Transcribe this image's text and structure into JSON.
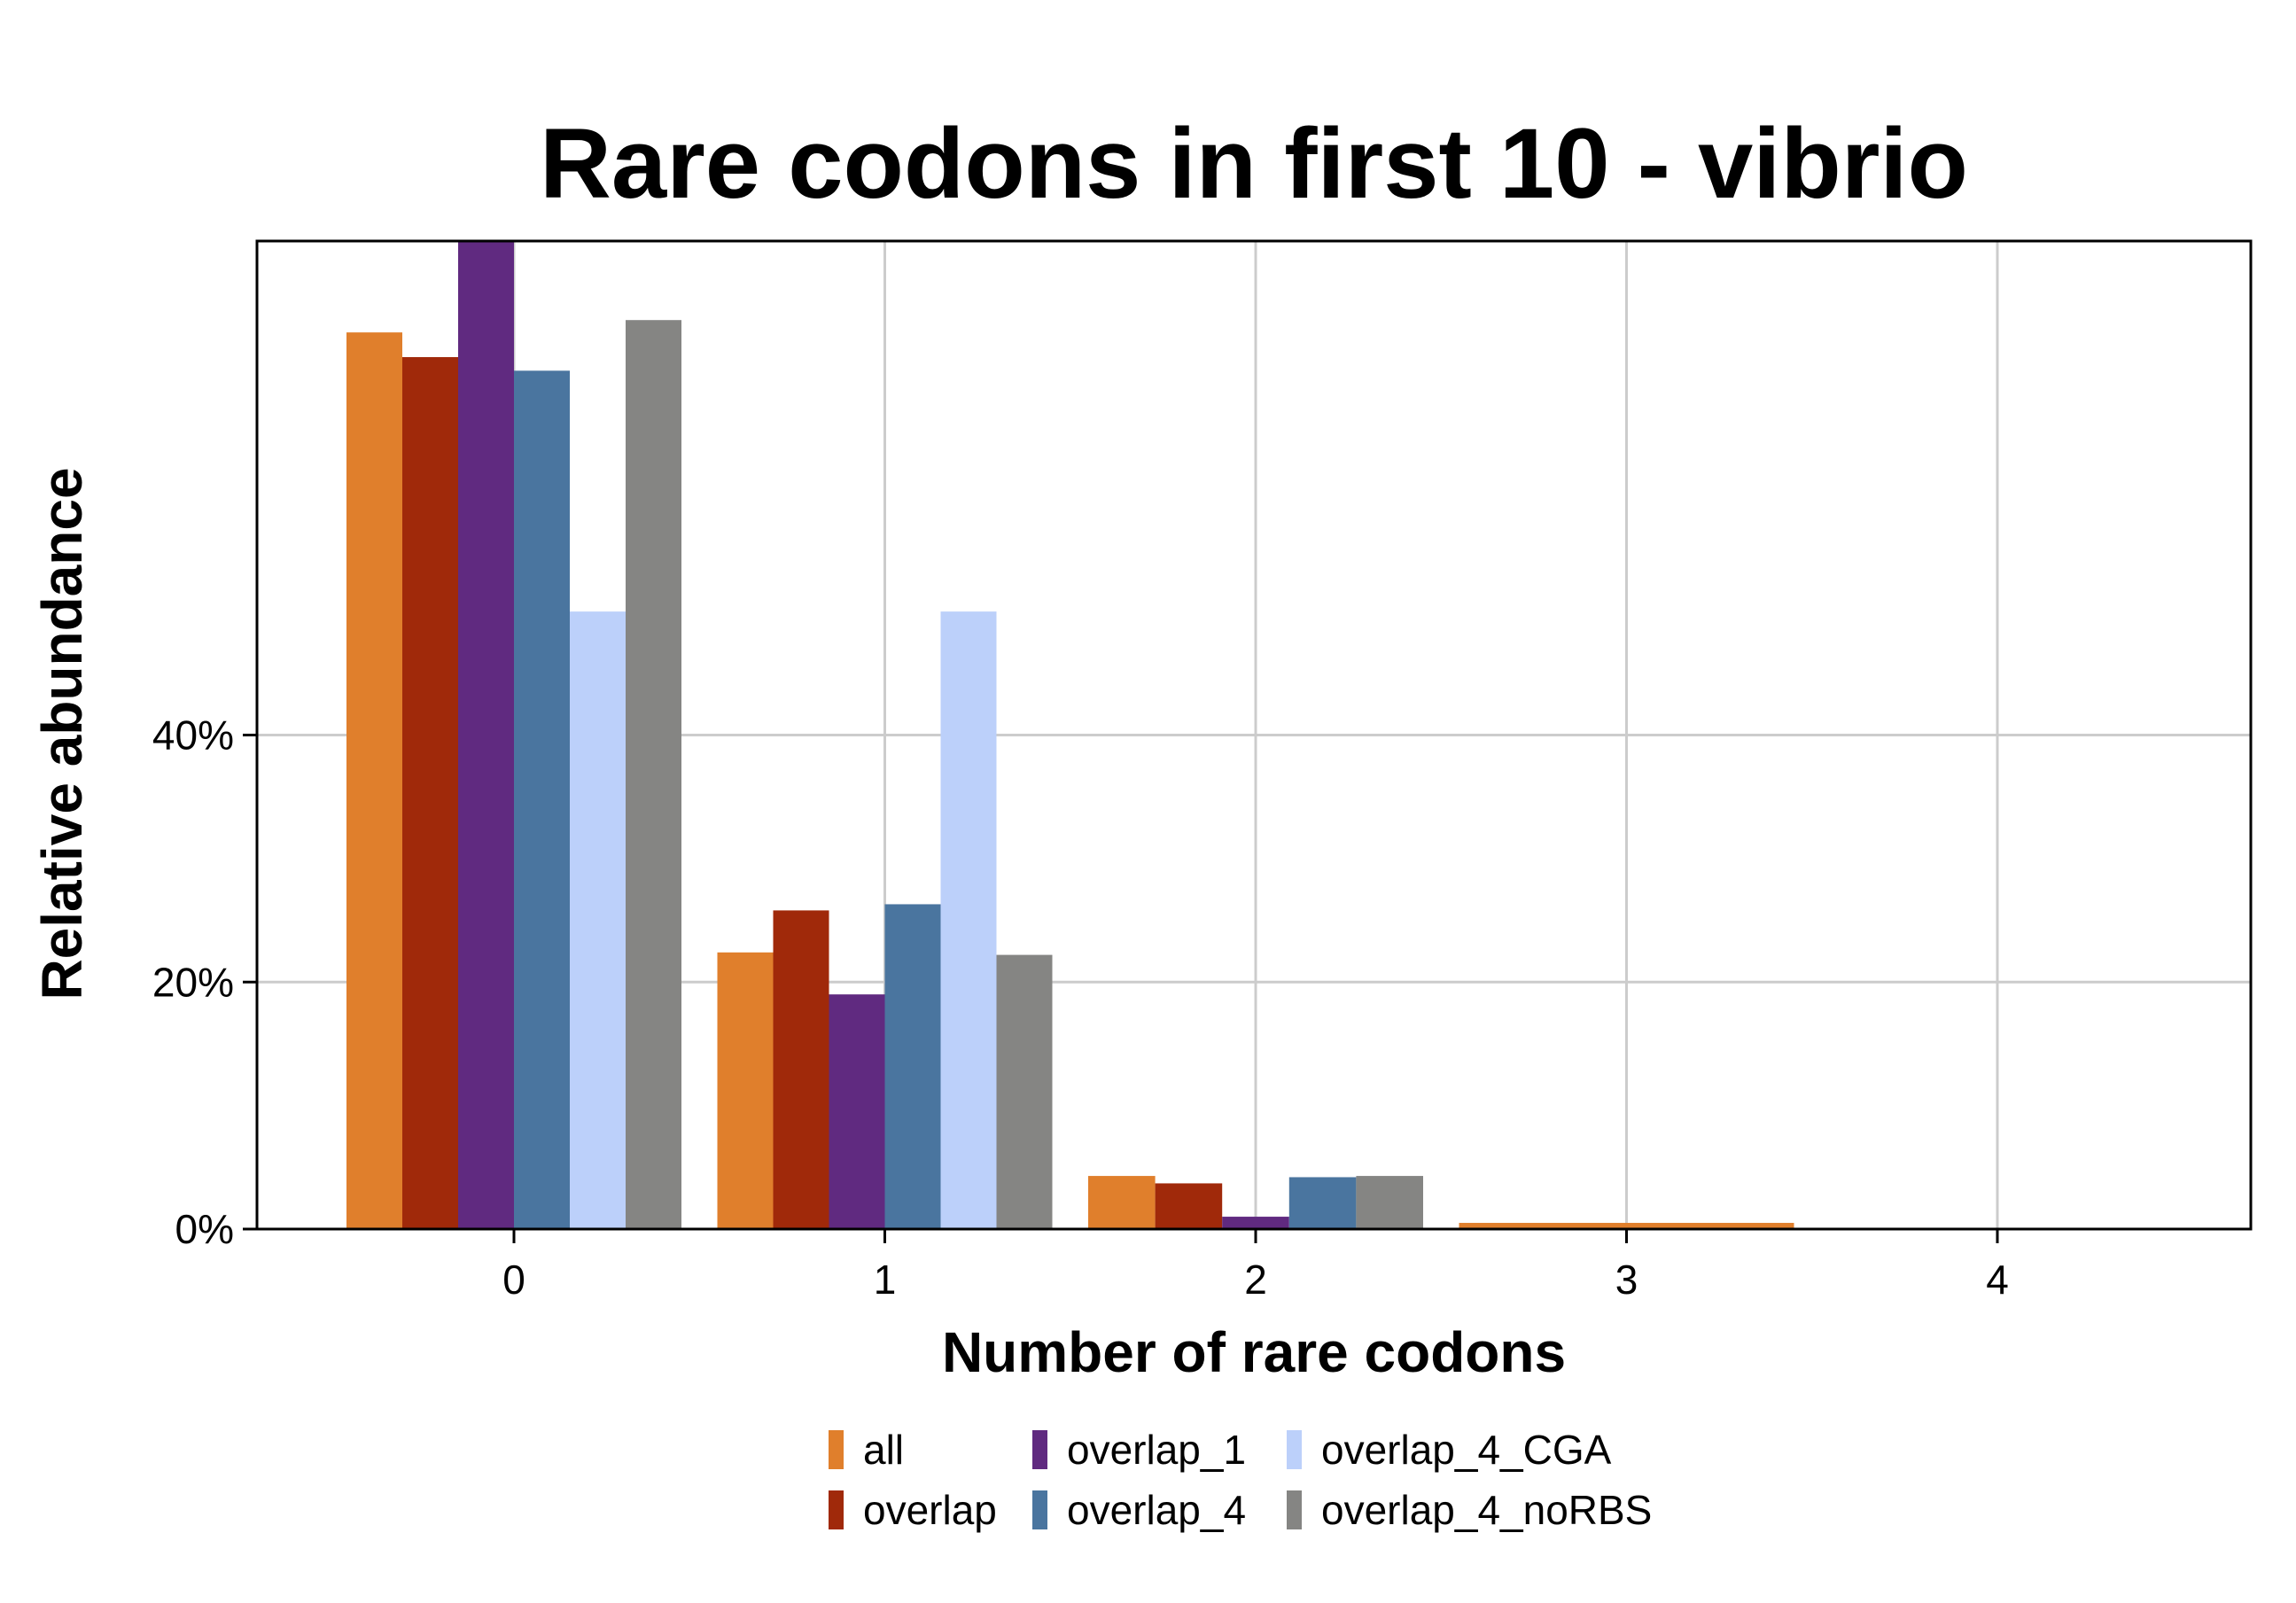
{
  "chart_data": {
    "type": "bar",
    "title": "Rare codons in first 10 - vibrio",
    "xlabel": "Number of rare codons",
    "ylabel": "Relative abundance",
    "categories": [
      "0",
      "1",
      "2",
      "3",
      "4"
    ],
    "yticks": [
      0,
      20,
      40
    ],
    "ytick_labels": [
      "0%",
      "20%",
      "40%"
    ],
    "ylim": [
      0,
      80
    ],
    "grid": true,
    "legend_position": "bottom",
    "series": [
      {
        "name": "all",
        "color": "#E07F2C",
        "values": [
          72.6,
          22.4,
          4.3,
          0.5,
          0
        ]
      },
      {
        "name": "overlap",
        "color": "#A0290A",
        "values": [
          70.6,
          25.8,
          3.7,
          0,
          0
        ]
      },
      {
        "name": "overlap_1",
        "color": "#602A80",
        "values": [
          80,
          19.0,
          1.0,
          0,
          0
        ]
      },
      {
        "name": "overlap_4",
        "color": "#4A759F",
        "values": [
          69.5,
          26.3,
          4.2,
          0,
          0
        ]
      },
      {
        "name": "overlap_4_CGA",
        "color": "#BCD0FA",
        "values": [
          50.0,
          50.0,
          0,
          0,
          0
        ]
      },
      {
        "name": "overlap_4_noRBS",
        "color": "#858583",
        "values": [
          73.6,
          22.2,
          4.3,
          0,
          0
        ]
      }
    ]
  }
}
